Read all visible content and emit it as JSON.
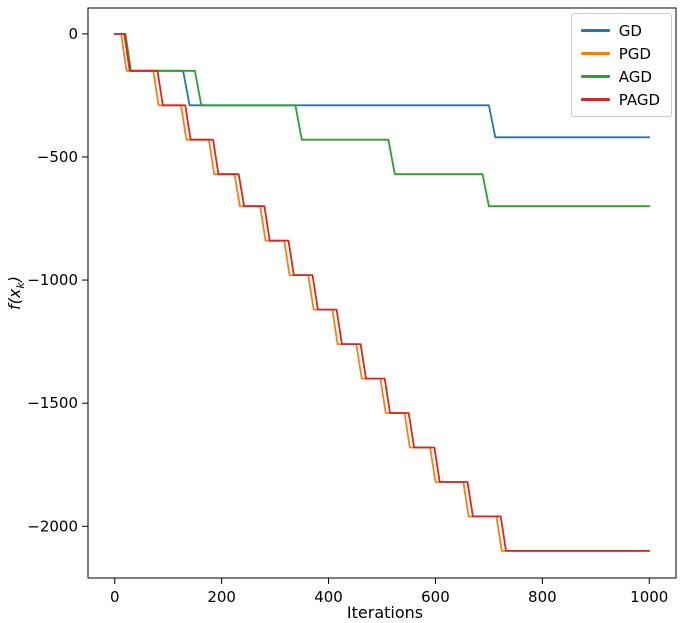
{
  "chart_data": {
    "type": "line",
    "title": "",
    "xlabel": "Iterations",
    "ylabel": "f(x_k)",
    "ylabel_parts": {
      "pre": "f(x",
      "sub": "k",
      "post": ")"
    },
    "xlim": [
      -50,
      1050
    ],
    "ylim": [
      -2210,
      105
    ],
    "xticks": [
      0,
      200,
      400,
      600,
      800,
      1000
    ],
    "yticks": [
      0,
      -500,
      -1000,
      -1500,
      -2000
    ],
    "grid": false,
    "legend_position": "upper right",
    "series": [
      {
        "name": "GD",
        "color": "#1f77b4",
        "x": [
          0,
          20,
          30,
          128,
          140,
          700,
          712,
          1000
        ],
        "y": [
          0,
          0,
          -150,
          -150,
          -290,
          -290,
          -420,
          -420
        ]
      },
      {
        "name": "PGD",
        "color": "#ff7f0e",
        "x": [
          0,
          12,
          22,
          72,
          82,
          124,
          134,
          176,
          186,
          224,
          234,
          272,
          282,
          317,
          327,
          362,
          372,
          407,
          417,
          452,
          462,
          497,
          507,
          542,
          552,
          590,
          600,
          652,
          662,
          714,
          724,
          1000
        ],
        "y": [
          0,
          0,
          -150,
          -150,
          -290,
          -290,
          -430,
          -430,
          -570,
          -570,
          -700,
          -700,
          -840,
          -840,
          -980,
          -980,
          -1120,
          -1120,
          -1260,
          -1260,
          -1400,
          -1400,
          -1540,
          -1540,
          -1680,
          -1680,
          -1820,
          -1820,
          -1960,
          -1960,
          -2100,
          -2100
        ]
      },
      {
        "name": "AGD",
        "color": "#2ca02c",
        "x": [
          0,
          20,
          30,
          150,
          162,
          338,
          350,
          512,
          524,
          688,
          700,
          1000
        ],
        "y": [
          0,
          0,
          -150,
          -150,
          -290,
          -290,
          -430,
          -430,
          -570,
          -570,
          -700,
          -700
        ]
      },
      {
        "name": "PAGD",
        "color": "#d62728",
        "x": [
          0,
          18,
          28,
          80,
          90,
          132,
          142,
          184,
          194,
          232,
          242,
          280,
          290,
          325,
          335,
          370,
          380,
          415,
          425,
          460,
          470,
          505,
          515,
          550,
          560,
          598,
          608,
          660,
          670,
          722,
          732,
          1000
        ],
        "y": [
          0,
          0,
          -150,
          -150,
          -290,
          -290,
          -430,
          -430,
          -570,
          -570,
          -700,
          -700,
          -840,
          -840,
          -980,
          -980,
          -1120,
          -1120,
          -1260,
          -1260,
          -1400,
          -1400,
          -1540,
          -1540,
          -1680,
          -1680,
          -1820,
          -1820,
          -1960,
          -1960,
          -2100,
          -2100
        ]
      }
    ]
  }
}
